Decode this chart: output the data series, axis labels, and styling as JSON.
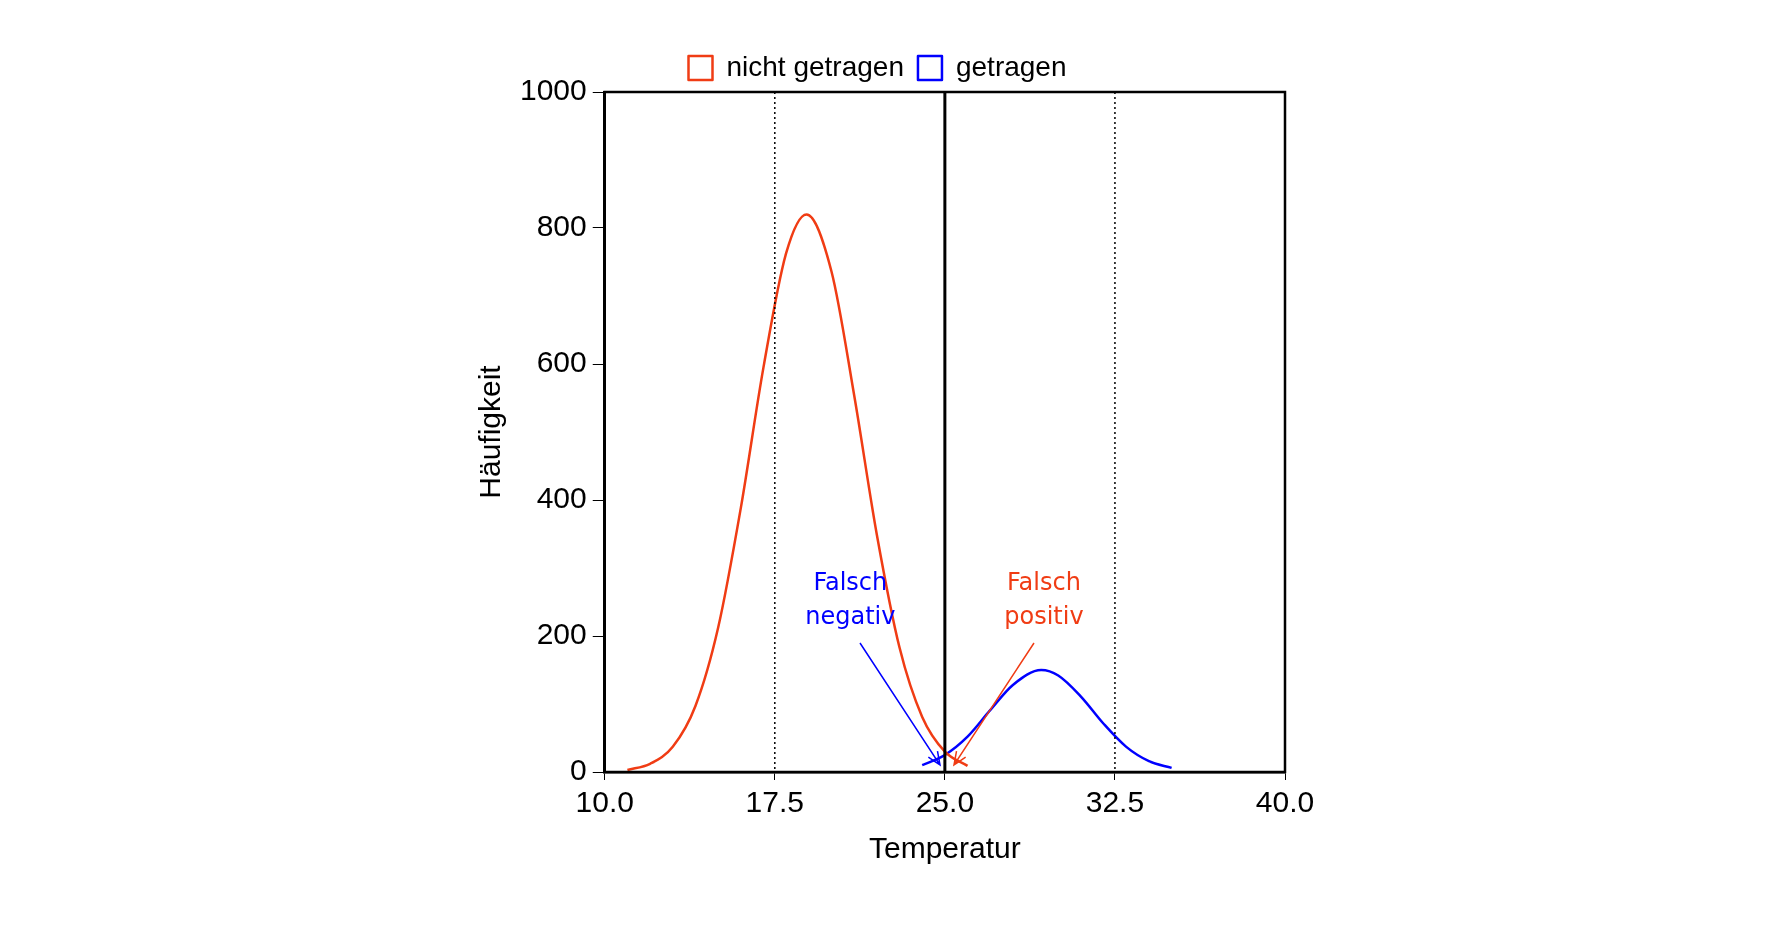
{
  "chart_data": {
    "type": "line",
    "xlabel": "Temperatur",
    "ylabel": "Häufigkeit",
    "xlim": [
      10,
      40
    ],
    "xticks": [
      {
        "value": 10,
        "label": "10.0"
      },
      {
        "value": 17.5,
        "label": "17.5"
      },
      {
        "value": 25,
        "label": "25.0"
      },
      {
        "value": 32.5,
        "label": "32.5"
      },
      {
        "value": 40,
        "label": "40.0"
      }
    ],
    "ylim": [
      0,
      1000
    ],
    "yticks": [
      0,
      200,
      400,
      600,
      800,
      1000
    ],
    "grid": false,
    "legend": "top",
    "marker": "none",
    "line_style": "solid",
    "series": [
      {
        "name": "nicht getragen",
        "color": "#f03c14",
        "x": [
          11,
          12,
          13,
          14,
          15,
          16,
          17,
          18,
          18.9,
          20,
          21,
          22,
          23,
          24,
          25,
          26
        ],
        "values": [
          3,
          12,
          37,
          97,
          212,
          388,
          595,
          763,
          820,
          736,
          554,
          349,
          183,
          81,
          30,
          9
        ]
      },
      {
        "name": "getragen",
        "color": "#0000ff",
        "x": [
          24,
          25,
          26,
          27,
          28,
          29.25,
          30,
          31,
          32,
          33,
          34,
          35
        ],
        "values": [
          10,
          25,
          52,
          91,
          128,
          150,
          142,
          111,
          71,
          37,
          16,
          6
        ]
      }
    ],
    "ref_lines": [
      {
        "axis": "x",
        "value": 17.5,
        "line_style": "dotted"
      },
      {
        "axis": "x",
        "value": 25,
        "line_style": "solid"
      },
      {
        "axis": "x",
        "value": 32.5,
        "line_style": "dotted"
      }
    ],
    "annotations": [
      {
        "text": "Falsch negativ",
        "x": 24.8,
        "y": 10
      },
      {
        "text": "Falsch positiv",
        "x": 25.4,
        "y": 10
      }
    ]
  }
}
